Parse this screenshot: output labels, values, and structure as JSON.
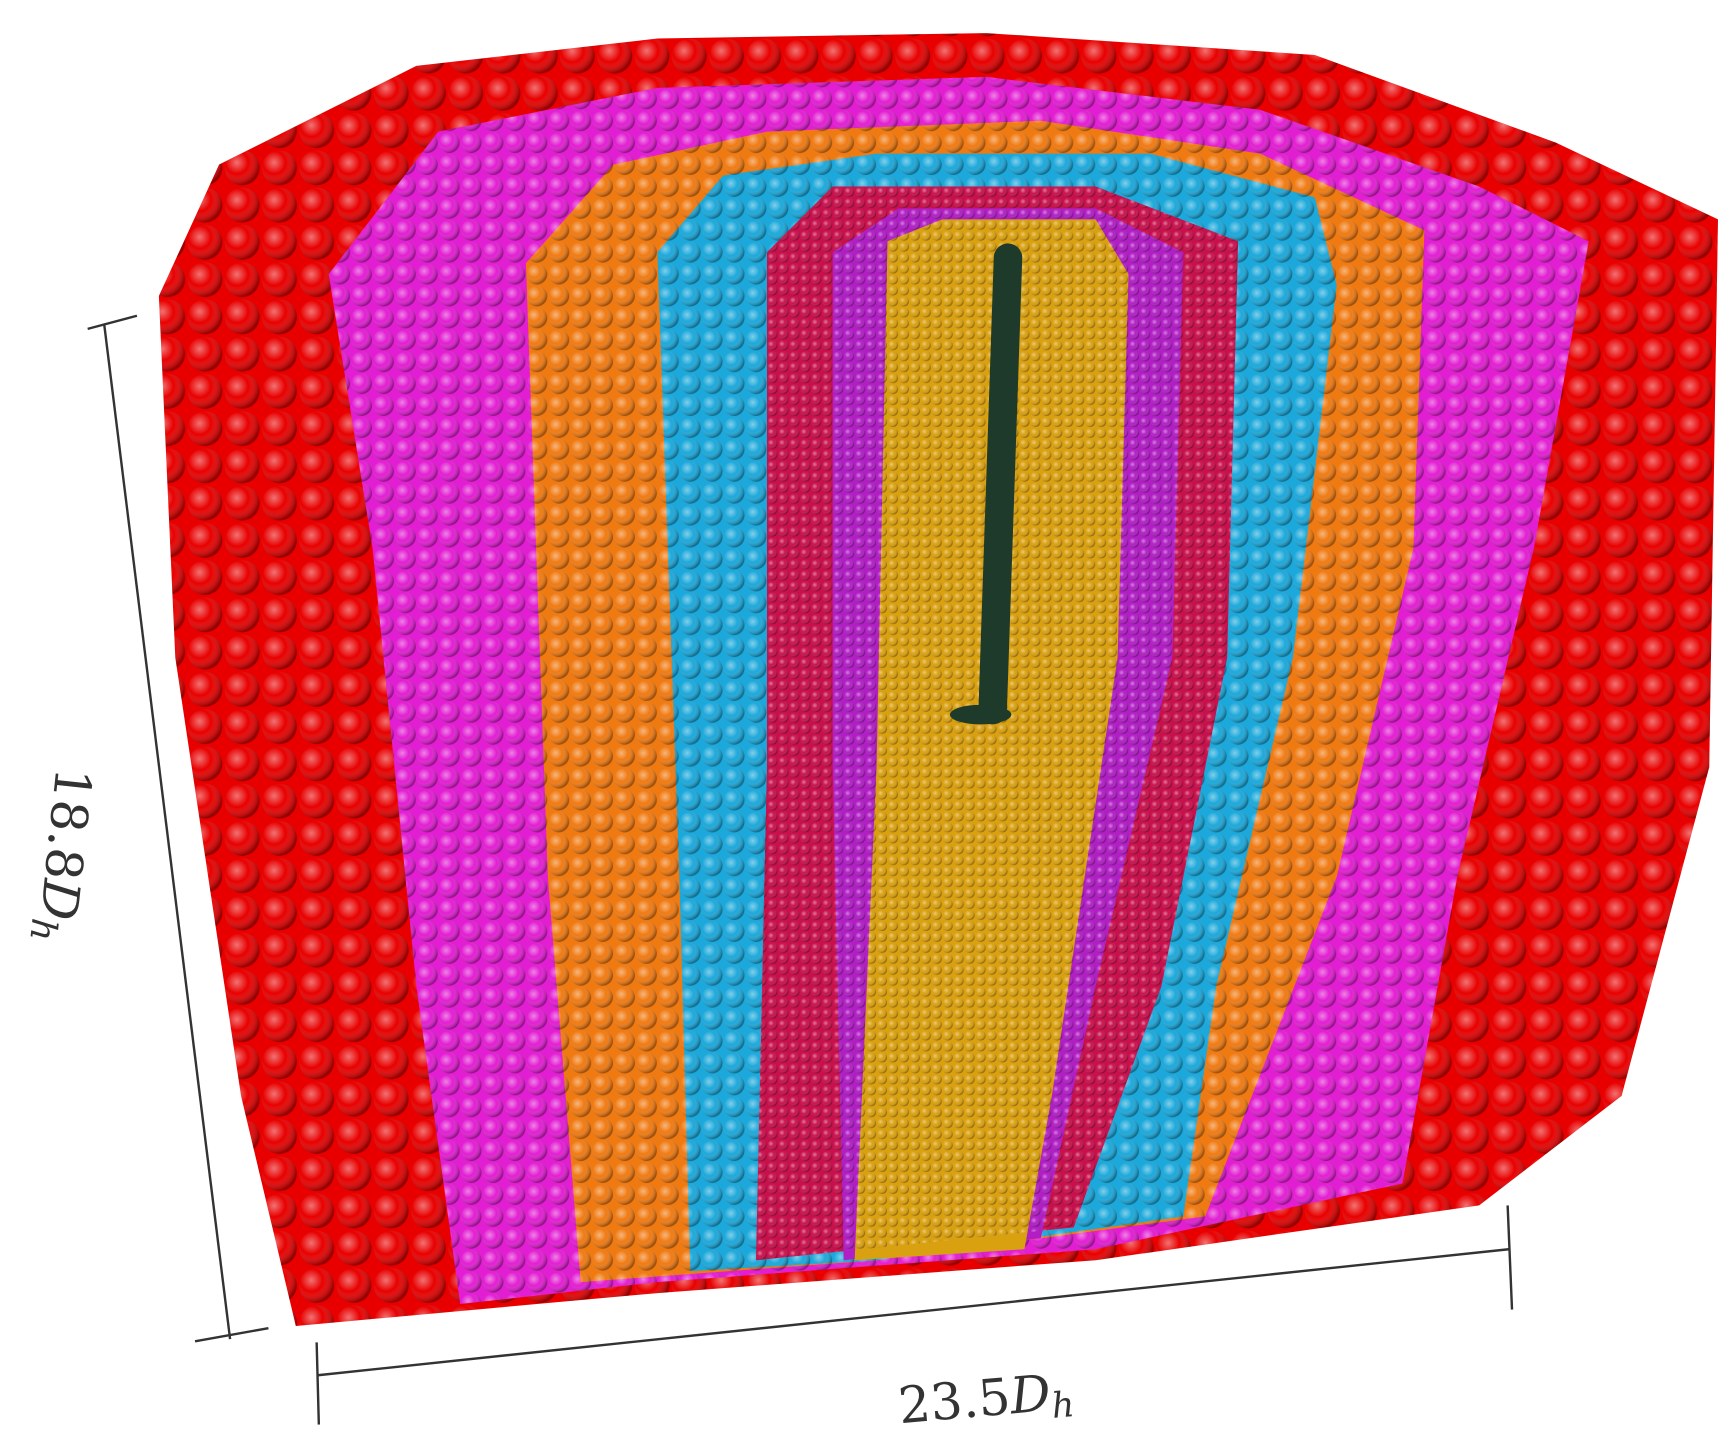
{
  "dimensions": {
    "height": {
      "number": "18.8",
      "symbol": "D",
      "subscript": "h"
    },
    "width": {
      "number": "23.5",
      "symbol": "D",
      "subscript": "h"
    }
  }
}
